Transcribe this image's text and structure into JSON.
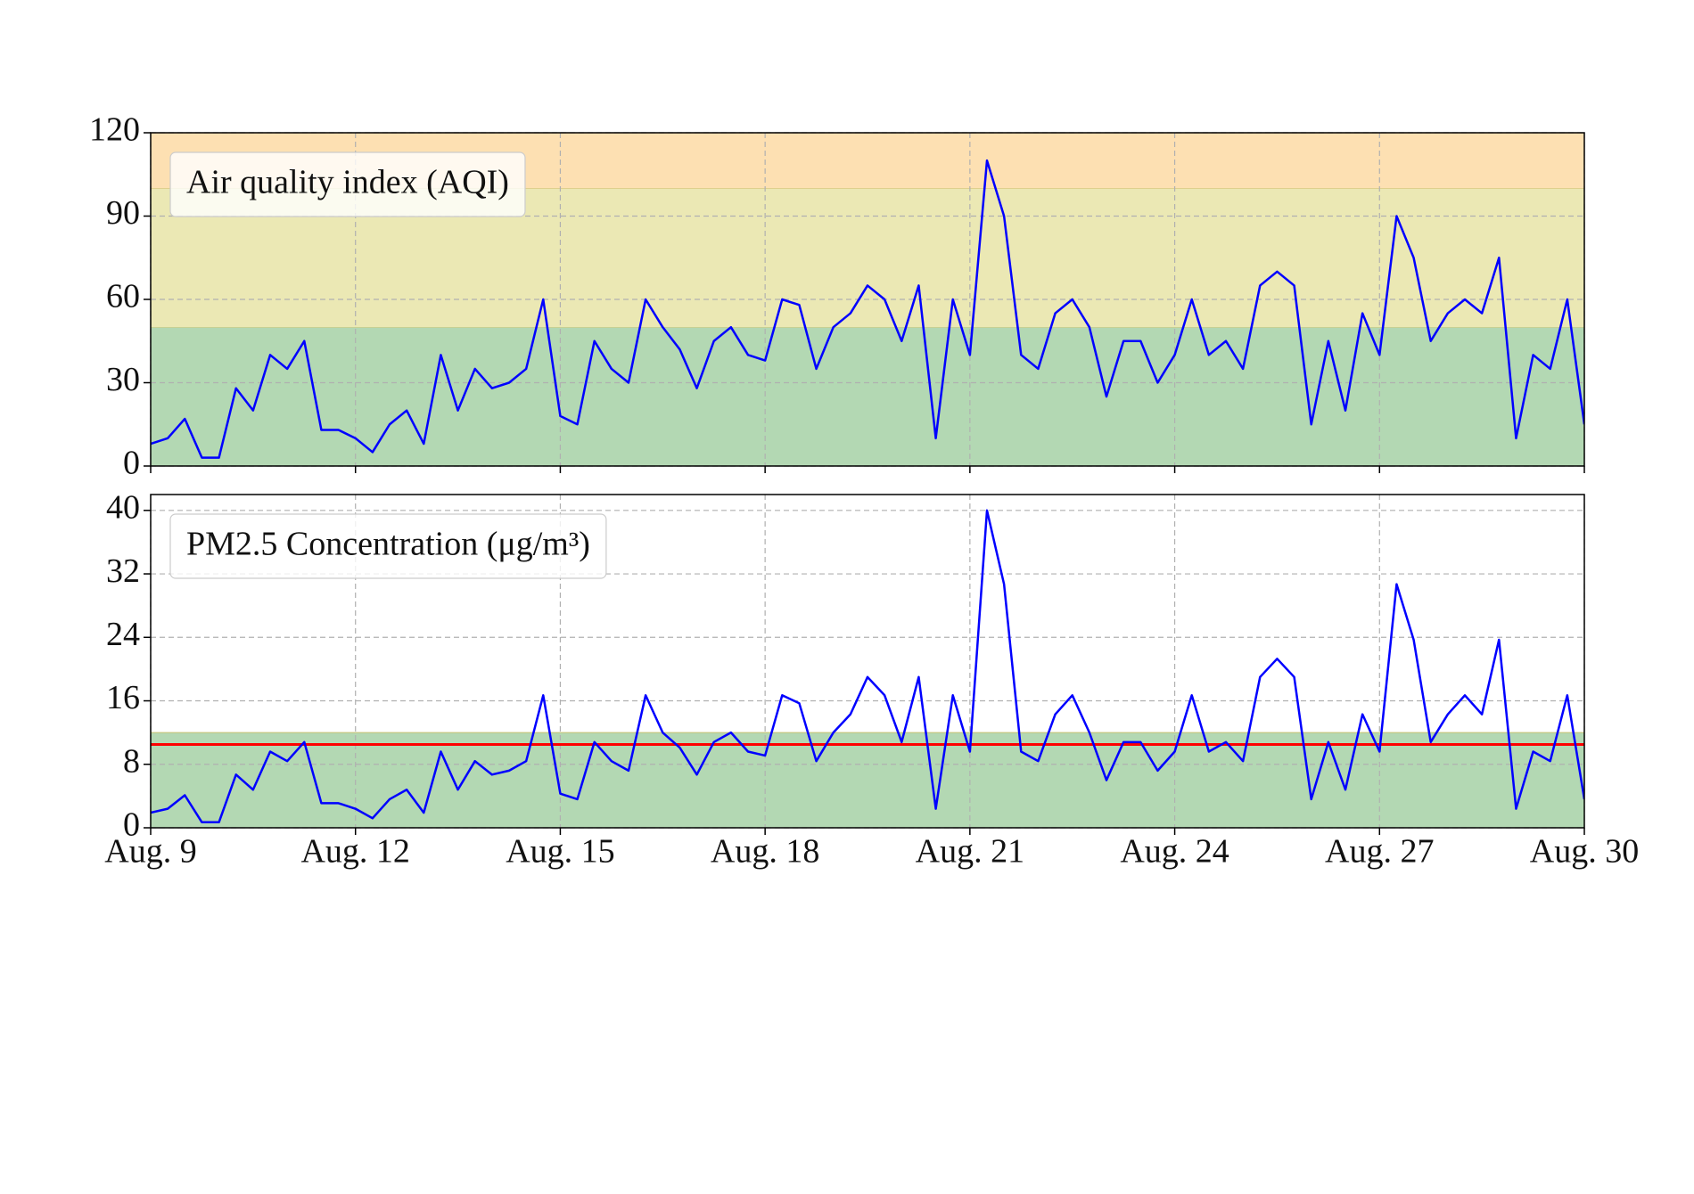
{
  "chart_data": [
    {
      "type": "line",
      "legend": "upper left",
      "grid": true,
      "xlim": [
        9,
        30
      ],
      "xticks": [
        9,
        12,
        15,
        18,
        21,
        24,
        27,
        30
      ],
      "ylim": [
        0,
        120
      ],
      "yticks": [
        0,
        30,
        60,
        90,
        120
      ],
      "bands": [
        {
          "from": 0,
          "to": 50,
          "color": "#b3d8b3"
        },
        {
          "from": 50,
          "to": 100,
          "color": "#ebe8b4"
        },
        {
          "from": 100,
          "to": 120,
          "color": "#fde0b2"
        }
      ],
      "x": [
        9,
        9.25,
        9.5,
        9.75,
        10,
        10.25,
        10.5,
        10.75,
        11,
        11.25,
        11.5,
        11.75,
        12,
        12.25,
        12.5,
        12.75,
        13,
        13.25,
        13.5,
        13.75,
        14,
        14.25,
        14.5,
        14.75,
        15,
        15.25,
        15.5,
        15.75,
        16,
        16.25,
        16.5,
        16.75,
        17,
        17.25,
        17.5,
        17.75,
        18,
        18.25,
        18.5,
        18.75,
        19,
        19.25,
        19.5,
        19.75,
        20,
        20.25,
        20.5,
        20.75,
        21,
        21.25,
        21.5,
        21.75,
        22,
        22.25,
        22.5,
        22.75,
        23,
        23.25,
        23.5,
        23.75,
        24,
        24.25,
        24.5,
        24.75,
        25,
        25.25,
        25.5,
        25.75,
        26,
        26.25,
        26.5,
        26.75,
        27,
        27.25,
        27.5,
        27.75,
        28,
        28.25,
        28.5,
        28.75,
        29,
        29.25,
        29.5,
        29.75,
        30
      ],
      "series": [
        {
          "name": "Air quality index (AQI)",
          "color": "#0000ff",
          "values": [
            8,
            10,
            17,
            3,
            3,
            28,
            20,
            40,
            35,
            45,
            13,
            13,
            10,
            5,
            15,
            20,
            8,
            40,
            20,
            35,
            28,
            30,
            35,
            60,
            18,
            15,
            45,
            35,
            30,
            60,
            50,
            42,
            28,
            45,
            50,
            40,
            38,
            60,
            58,
            35,
            50,
            55,
            65,
            60,
            45,
            65,
            10,
            60,
            40,
            110,
            90,
            40,
            35,
            55,
            60,
            50,
            25,
            45,
            45,
            30,
            40,
            60,
            40,
            45,
            35,
            65,
            70,
            65,
            15,
            45,
            20,
            55,
            40,
            90,
            75,
            45,
            55,
            60,
            55,
            75,
            10,
            40,
            35,
            60,
            15
          ]
        }
      ]
    },
    {
      "type": "line",
      "legend": "upper left",
      "grid": true,
      "xlim": [
        9,
        30
      ],
      "xticks": [
        {
          "value": 9,
          "label": "Aug. 9"
        },
        {
          "value": 12,
          "label": "Aug. 12"
        },
        {
          "value": 15,
          "label": "Aug. 15"
        },
        {
          "value": 18,
          "label": "Aug. 18"
        },
        {
          "value": 21,
          "label": "Aug. 21"
        },
        {
          "value": 24,
          "label": "Aug. 24"
        },
        {
          "value": 27,
          "label": "Aug. 27"
        },
        {
          "value": 30,
          "label": "Aug. 30"
        }
      ],
      "ylim": [
        0,
        42
      ],
      "yticks": [
        0,
        8,
        16,
        24,
        32,
        40
      ],
      "bands": [
        {
          "from": 0,
          "to": 12,
          "color": "#b3d8b3"
        }
      ],
      "hline": {
        "value": 10.5,
        "color": "#ff0000"
      },
      "x": [
        9,
        9.25,
        9.5,
        9.75,
        10,
        10.25,
        10.5,
        10.75,
        11,
        11.25,
        11.5,
        11.75,
        12,
        12.25,
        12.5,
        12.75,
        13,
        13.25,
        13.5,
        13.75,
        14,
        14.25,
        14.5,
        14.75,
        15,
        15.25,
        15.5,
        15.75,
        16,
        16.25,
        16.5,
        16.75,
        17,
        17.25,
        17.5,
        17.75,
        18,
        18.25,
        18.5,
        18.75,
        19,
        19.25,
        19.5,
        19.75,
        20,
        20.25,
        20.5,
        20.75,
        21,
        21.25,
        21.5,
        21.75,
        22,
        22.25,
        22.5,
        22.75,
        23,
        23.25,
        23.5,
        23.75,
        24,
        24.25,
        24.5,
        24.75,
        25,
        25.25,
        25.5,
        25.75,
        26,
        26.25,
        26.5,
        26.75,
        27,
        27.25,
        27.5,
        27.75,
        28,
        28.25,
        28.5,
        28.75,
        29,
        29.25,
        29.5,
        29.75,
        30
      ],
      "series": [
        {
          "name": "PM2.5 Concentration (μg/m³)",
          "color": "#0000ff",
          "values": [
            1.9,
            2.4,
            4.1,
            0.7,
            0.7,
            6.7,
            4.8,
            9.6,
            8.4,
            10.8,
            3.1,
            3.1,
            2.4,
            1.2,
            3.6,
            4.8,
            1.9,
            9.6,
            4.8,
            8.4,
            6.7,
            7.2,
            8.4,
            16.7,
            4.3,
            3.6,
            10.8,
            8.4,
            7.2,
            16.7,
            12,
            10.1,
            6.7,
            10.8,
            12,
            9.6,
            9.1,
            16.7,
            15.7,
            8.4,
            12,
            14.3,
            19,
            16.7,
            10.8,
            19,
            2.4,
            16.7,
            9.6,
            40,
            30.7,
            9.6,
            8.4,
            14.3,
            16.7,
            12,
            6,
            10.8,
            10.8,
            7.2,
            9.6,
            16.7,
            9.6,
            10.8,
            8.4,
            19,
            21.3,
            19,
            3.6,
            10.8,
            4.8,
            14.3,
            9.6,
            30.7,
            23.7,
            10.8,
            14.3,
            16.7,
            14.3,
            23.7,
            2.4,
            9.6,
            8.4,
            16.7,
            3.6
          ]
        }
      ]
    }
  ]
}
